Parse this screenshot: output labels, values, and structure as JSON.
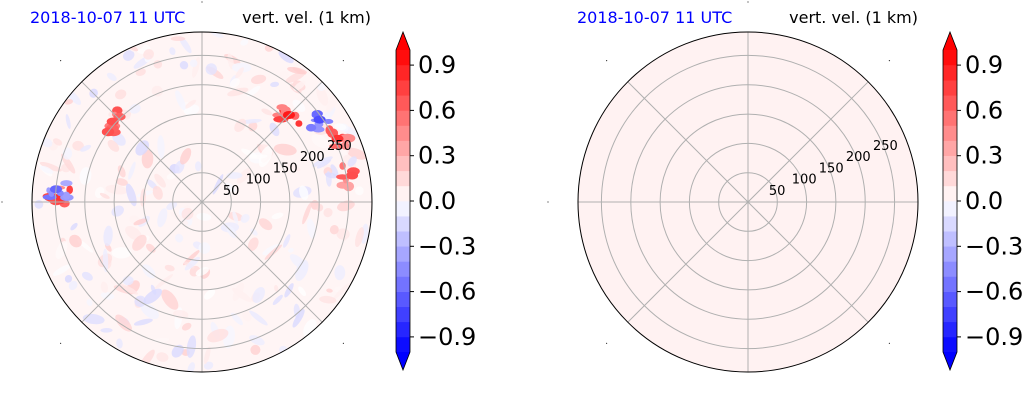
{
  "chart_data": [
    {
      "type": "heatmap",
      "projection": "polar",
      "title_left": "2018-10-07 11 UTC",
      "title_right": "vert. vel. (1 km)",
      "radial_ticks": [
        "50",
        "100",
        "150",
        "200",
        "250"
      ],
      "radial_values": [
        50,
        100,
        150,
        200,
        250
      ],
      "rmax": 290,
      "angular_gridlines_deg": [
        0,
        45,
        90,
        135,
        180,
        225,
        270,
        315
      ],
      "field": "vertical velocity",
      "fill": "mixed",
      "features": [
        {
          "label": "strong updraft band",
          "bearing_deg": 45,
          "range": 210,
          "value": 0.9
        },
        {
          "label": "updraft cluster",
          "bearing_deg": 65,
          "range": 255,
          "value": 0.8
        },
        {
          "label": "updraft",
          "bearing_deg": 80,
          "range": 260,
          "value": 0.7
        },
        {
          "label": "downdraft",
          "bearing_deg": 55,
          "range": 245,
          "value": -0.7
        },
        {
          "label": "updraft west",
          "bearing_deg": 272,
          "range": 240,
          "value": 0.8
        },
        {
          "label": "downdraft west",
          "bearing_deg": 275,
          "range": 250,
          "value": -0.6
        },
        {
          "label": "isolated updraft",
          "bearing_deg": 312,
          "range": 205,
          "value": 0.7
        }
      ],
      "colorbar": {
        "vmin": -1.0,
        "vmax": 1.0,
        "ticks": [
          "0.9",
          "0.6",
          "0.3",
          "0.0",
          "−0.3",
          "−0.6",
          "−0.9"
        ],
        "tick_values": [
          0.9,
          0.6,
          0.3,
          0.0,
          -0.3,
          -0.6,
          -0.9
        ],
        "extend": "both",
        "colormap": "bwr"
      }
    },
    {
      "type": "heatmap",
      "projection": "polar",
      "title_left": "2018-10-07 11 UTC",
      "title_right": "vert. vel. (1 km)",
      "radial_ticks": [
        "50",
        "100",
        "150",
        "200",
        "250"
      ],
      "radial_values": [
        50,
        100,
        150,
        200,
        250
      ],
      "rmax": 290,
      "angular_gridlines_deg": [
        0,
        45,
        90,
        135,
        180,
        225,
        270,
        315
      ],
      "field": "vertical velocity",
      "fill": "uniform",
      "uniform_value": 0.05,
      "colorbar": {
        "vmin": -1.0,
        "vmax": 1.0,
        "ticks": [
          "0.9",
          "0.6",
          "0.3",
          "0.0",
          "−0.3",
          "−0.6",
          "−0.9"
        ],
        "tick_values": [
          0.9,
          0.6,
          0.3,
          0.0,
          -0.3,
          -0.6,
          -0.9
        ],
        "extend": "both",
        "colormap": "bwr"
      }
    }
  ]
}
